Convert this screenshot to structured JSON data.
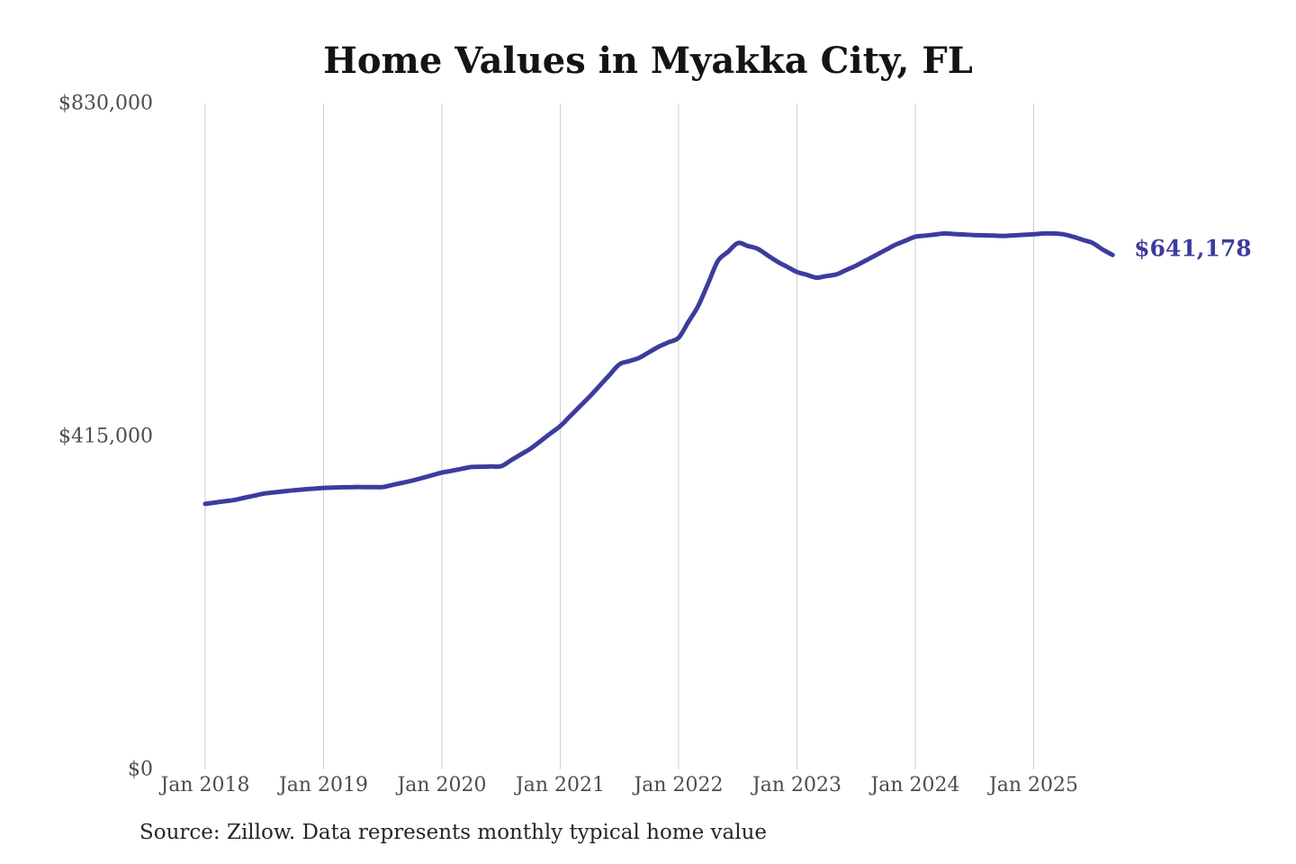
{
  "title": "Home Values in Myakka City, FL",
  "end_label": "$641,178",
  "source_note": "Source: Zillow. Data represents monthly typical home value",
  "colors": {
    "line": "#3c3c9e",
    "end_label": "#3c3c9e",
    "gridline": "#cfcfcf",
    "axis_text": "#4d4d4d",
    "title_text": "#141414",
    "source_text": "#262626",
    "background": "#ffffff"
  },
  "y_axis": {
    "ticks": [
      {
        "label": "$830,000",
        "value": 830000
      },
      {
        "label": "$415,000",
        "value": 415000
      },
      {
        "label": "$0",
        "value": 0
      }
    ]
  },
  "x_axis": {
    "ticks": [
      {
        "label": "Jan 2018",
        "month": "2018-01"
      },
      {
        "label": "Jan 2019",
        "month": "2019-01"
      },
      {
        "label": "Jan 2020",
        "month": "2020-01"
      },
      {
        "label": "Jan 2021",
        "month": "2021-01"
      },
      {
        "label": "Jan 2022",
        "month": "2022-01"
      },
      {
        "label": "Jan 2023",
        "month": "2023-01"
      },
      {
        "label": "Jan 2024",
        "month": "2024-01"
      },
      {
        "label": "Jan 2025",
        "month": "2025-01"
      }
    ]
  },
  "chart_data": {
    "type": "line",
    "title": "Home Values in Myakka City, FL",
    "series_name": "Monthly typical home value",
    "xlabel": "",
    "ylabel": "",
    "ylim": [
      0,
      830000
    ],
    "grid": "vertical-only",
    "legend": "none",
    "line_color": "#3c3c9e",
    "start_month": "2018-01",
    "frequency": "monthly",
    "latest_value": 641178,
    "x_tick_labels": [
      "Jan 2018",
      "Jan 2019",
      "Jan 2020",
      "Jan 2021",
      "Jan 2022",
      "Jan 2023",
      "Jan 2024",
      "Jan 2025"
    ],
    "y_tick_labels": [
      "$0",
      "$415,000",
      "$830,000"
    ],
    "months": [
      "2018-01",
      "2018-02",
      "2018-03",
      "2018-04",
      "2018-05",
      "2018-06",
      "2018-07",
      "2018-08",
      "2018-09",
      "2018-10",
      "2018-11",
      "2018-12",
      "2019-01",
      "2019-02",
      "2019-03",
      "2019-04",
      "2019-05",
      "2019-06",
      "2019-07",
      "2019-08",
      "2019-09",
      "2019-10",
      "2019-11",
      "2019-12",
      "2020-01",
      "2020-02",
      "2020-03",
      "2020-04",
      "2020-05",
      "2020-06",
      "2020-07",
      "2020-08",
      "2020-09",
      "2020-10",
      "2020-11",
      "2020-12",
      "2021-01",
      "2021-02",
      "2021-03",
      "2021-04",
      "2021-05",
      "2021-06",
      "2021-07",
      "2021-08",
      "2021-09",
      "2021-10",
      "2021-11",
      "2021-12",
      "2022-01",
      "2022-02",
      "2022-03",
      "2022-04",
      "2022-05",
      "2022-06",
      "2022-07",
      "2022-08",
      "2022-09",
      "2022-10",
      "2022-11",
      "2022-12",
      "2023-01",
      "2023-02",
      "2023-03",
      "2023-04",
      "2023-05",
      "2023-06",
      "2023-07",
      "2023-08",
      "2023-09",
      "2023-10",
      "2023-11",
      "2023-12",
      "2024-01",
      "2024-02",
      "2024-03",
      "2024-04",
      "2024-05",
      "2024-06",
      "2024-07",
      "2024-08",
      "2024-09",
      "2024-10",
      "2024-11",
      "2024-12",
      "2025-01",
      "2025-02",
      "2025-03",
      "2025-04",
      "2025-05",
      "2025-06",
      "2025-07",
      "2025-08",
      "2025-09"
    ],
    "values": [
      331000,
      332700,
      334300,
      336000,
      338700,
      341300,
      344000,
      345300,
      346700,
      348000,
      349000,
      350000,
      351000,
      351300,
      351700,
      352000,
      352000,
      352000,
      352000,
      354700,
      357300,
      360000,
      363300,
      366700,
      370000,
      372300,
      374700,
      377000,
      377300,
      377700,
      378000,
      385300,
      392700,
      400000,
      409300,
      418700,
      428000,
      440300,
      452700,
      465000,
      478300,
      491700,
      505000,
      509000,
      513000,
      520000,
      527000,
      532500,
      538000,
      558000,
      578000,
      606000,
      634000,
      645000,
      656000,
      652500,
      649000,
      641000,
      633000,
      626500,
      620000,
      616500,
      613000,
      615000,
      617000,
      622500,
      628000,
      634500,
      641000,
      647500,
      654000,
      659000,
      664000,
      665300,
      666700,
      668000,
      667300,
      666700,
      666000,
      665700,
      665300,
      665000,
      665700,
      666300,
      667000,
      668000,
      668000,
      667000,
      664000,
      660000,
      656000,
      648000,
      641178
    ]
  }
}
